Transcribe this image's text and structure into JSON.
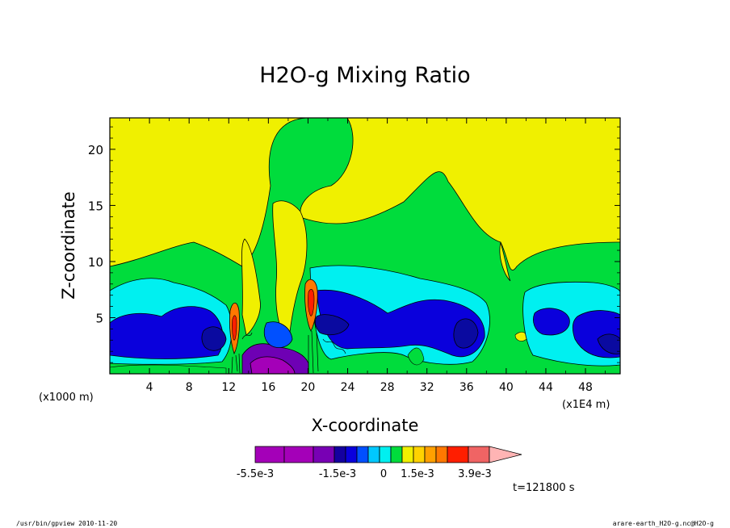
{
  "chart_data": {
    "type": "heatmap",
    "title": "H2O-g Mixing Ratio",
    "xlabel": "X-coordinate",
    "ylabel": "Z-coordinate",
    "x_unit_left": "(x1000 m)",
    "x_unit_right": "(x1E4 m)",
    "xlim": [
      0,
      51.5
    ],
    "ylim": [
      0,
      22.8
    ],
    "x_ticks": [
      "4",
      "8",
      "12",
      "16",
      "20",
      "24",
      "28",
      "32",
      "36",
      "40",
      "44",
      "48"
    ],
    "y_ticks": [
      "5",
      "10",
      "15",
      "20"
    ],
    "field_description": "Contour-filled cross section of water vapor mixing ratio anomaly; yellow near-zero background aloft, green/cyan/blue/navy negative anomalies in lower layer, orange/red plumes near x=12-13 and x=20",
    "colorbar": {
      "tick_labels": [
        "-5.5e-3",
        "-1.5e-3",
        "0",
        "1.5e-3",
        "3.9e-3"
      ],
      "colors": [
        "#a400b8",
        "#a400b8",
        "#7800b4",
        "#1400a0",
        "#0a00dc",
        "#0050ff",
        "#00c8ff",
        "#00f0f0",
        "#00dc3c",
        "#f0f000",
        "#ffd200",
        "#ffa000",
        "#ff7800",
        "#ff1e00",
        "#f06464",
        "#ffb4b4"
      ]
    },
    "time_label": "t=121800 s"
  },
  "footer": {
    "left": "/usr/bin/gpview  2010-11-20",
    "right": "arare-earth_H2O-g.nc@H2O-g"
  },
  "colors": {
    "yellow": "#f0f000",
    "green": "#00dc3c",
    "cyan": "#00f0f0",
    "blue": "#0a00dc",
    "navy": "#0a0aa0",
    "sky": "#0050ff",
    "purple": "#6e00b4",
    "magenta": "#a400b8",
    "orange": "#ff7800",
    "red": "#ff1e00"
  }
}
